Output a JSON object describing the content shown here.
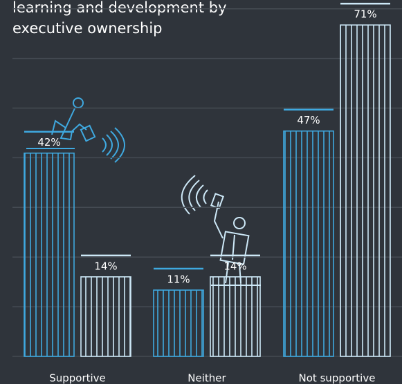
{
  "chart_data": {
    "type": "bar",
    "title": "learning and development by executive ownership",
    "categories": [
      "Supportive",
      "Neither",
      "Not supportive"
    ],
    "series": [
      {
        "color": "#3fa9e0",
        "values": [
          42,
          11,
          47
        ],
        "value_labels": [
          "42%",
          "11%",
          "47%"
        ]
      },
      {
        "color": "#cde8f7",
        "values": [
          14,
          14,
          71
        ],
        "value_labels": [
          "14%",
          "14%",
          "71%"
        ]
      }
    ],
    "ylim": [
      -4,
      74
    ],
    "grid": true
  }
}
